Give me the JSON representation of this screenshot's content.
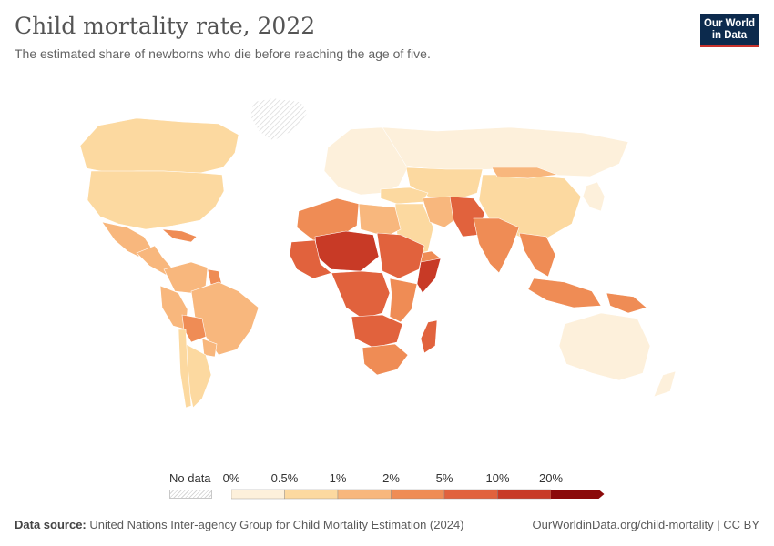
{
  "header": {
    "title": "Child mortality rate, 2022",
    "subtitle": "The estimated share of newborns who die before reaching the age of five."
  },
  "logo": {
    "line1": "Our World",
    "line2": "in Data"
  },
  "legend": {
    "no_data_label": "No data",
    "ticks": [
      "0%",
      "0.5%",
      "1%",
      "2%",
      "5%",
      "10%",
      "20%"
    ],
    "colors": [
      "#fdf0db",
      "#fcd9a0",
      "#f8b77d",
      "#ef8c55",
      "#e1623d",
      "#c83a26",
      "#8b0a0a"
    ]
  },
  "footer": {
    "source_label": "Data source:",
    "source_text": "United Nations Inter-agency Group for Child Mortality Estimation (2024)",
    "url_text": "OurWorldinData.org/child-mortality | CC BY"
  },
  "map_regions": [
    {
      "name": "Greenland",
      "class": "nodata"
    },
    {
      "name": "Canada",
      "class": 1
    },
    {
      "name": "United States",
      "class": 1
    },
    {
      "name": "Mexico",
      "class": 2
    },
    {
      "name": "Central America",
      "class": 2
    },
    {
      "name": "Caribbean",
      "class": 3
    },
    {
      "name": "Colombia & Venezuela",
      "class": 2
    },
    {
      "name": "Guyana & Suriname",
      "class": 3
    },
    {
      "name": "Brazil",
      "class": 2
    },
    {
      "name": "Peru & Ecuador",
      "class": 2
    },
    {
      "name": "Bolivia",
      "class": 3
    },
    {
      "name": "Paraguay",
      "class": 2
    },
    {
      "name": "Argentina",
      "class": 1
    },
    {
      "name": "Chile",
      "class": 1
    },
    {
      "name": "Europe",
      "class": 0
    },
    {
      "name": "Russia",
      "class": 0
    },
    {
      "name": "Kazakhstan & Central Asia",
      "class": 1
    },
    {
      "name": "China",
      "class": 1
    },
    {
      "name": "Mongolia",
      "class": 2
    },
    {
      "name": "Japan & Korea",
      "class": 0
    },
    {
      "name": "Turkey & Caucasus",
      "class": 1
    },
    {
      "name": "Middle East",
      "class": 1
    },
    {
      "name": "Iran",
      "class": 2
    },
    {
      "name": "Yemen",
      "class": 3
    },
    {
      "name": "Afghanistan & Pakistan",
      "class": 4
    },
    {
      "name": "India",
      "class": 3
    },
    {
      "name": "Southeast Asia mainland",
      "class": 3
    },
    {
      "name": "Indonesia & Philippines",
      "class": 3
    },
    {
      "name": "Papua New Guinea",
      "class": 3
    },
    {
      "name": "Australia",
      "class": 0
    },
    {
      "name": "New Zealand",
      "class": 0
    },
    {
      "name": "North Africa",
      "class": 3
    },
    {
      "name": "Egypt & Libya",
      "class": 2
    },
    {
      "name": "Sahel",
      "class": 5
    },
    {
      "name": "West Africa coast",
      "class": 4
    },
    {
      "name": "Sudan & Ethiopia",
      "class": 4
    },
    {
      "name": "Somalia",
      "class": 5
    },
    {
      "name": "Central Africa",
      "class": 4
    },
    {
      "name": "East Africa",
      "class": 3
    },
    {
      "name": "Angola & Zambia",
      "class": 4
    },
    {
      "name": "Southern Africa",
      "class": 3
    },
    {
      "name": "Madagascar",
      "class": 4
    }
  ]
}
